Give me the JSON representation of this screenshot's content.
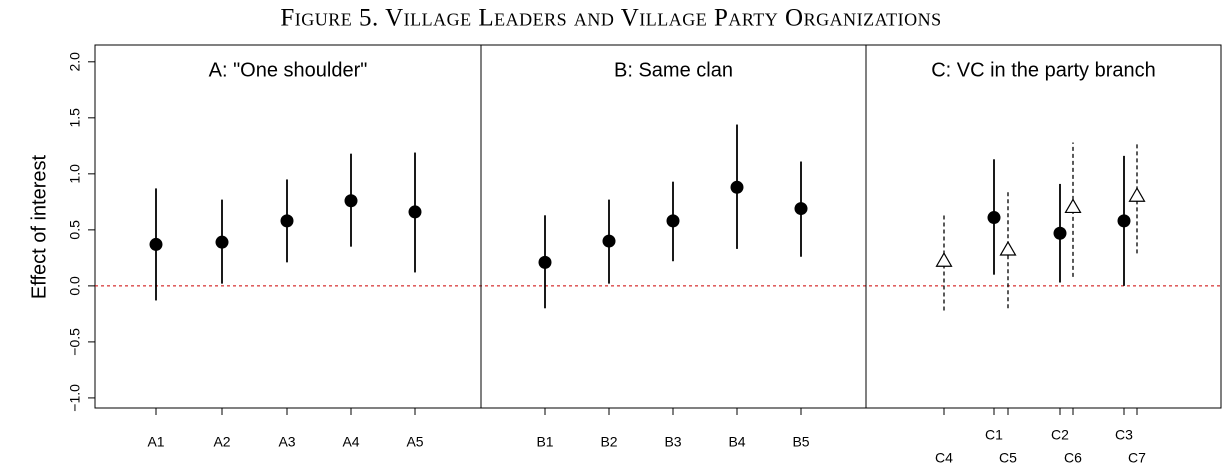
{
  "chart_data": {
    "type": "errorbar",
    "title": "Figure 5. Village Leaders and Village Party Organizations",
    "ylabel": "Effect of interest",
    "ylim": [
      -1.09,
      2.15
    ],
    "yticks": [
      {
        "value": -1,
        "label": "−1.0"
      },
      {
        "value": -0.5,
        "label": "−0.5"
      },
      {
        "value": 0,
        "label": "0.0"
      },
      {
        "value": 0.5,
        "label": "0.5"
      },
      {
        "value": 1,
        "label": "1.0"
      },
      {
        "value": 1.5,
        "label": "1.5"
      },
      {
        "value": 2,
        "label": "2.0"
      }
    ],
    "reference_line": 0,
    "reference_color": "#cc0000",
    "panels": [
      {
        "title": "A: \"One shoulder\"",
        "series": [
          {
            "marker": "circle",
            "linestyle": "solid",
            "categories": [
              "A1",
              "A2",
              "A3",
              "A4",
              "A5"
            ],
            "values": [
              0.37,
              0.39,
              0.58,
              0.76,
              0.66
            ],
            "lower": [
              -0.13,
              0.02,
              0.21,
              0.35,
              0.12
            ],
            "upper": [
              0.87,
              0.77,
              0.95,
              1.18,
              1.19
            ]
          }
        ]
      },
      {
        "title": "B: Same clan",
        "series": [
          {
            "marker": "circle",
            "linestyle": "solid",
            "categories": [
              "B1",
              "B2",
              "B3",
              "B4",
              "B5"
            ],
            "values": [
              0.21,
              0.4,
              0.58,
              0.88,
              0.69
            ],
            "lower": [
              -0.2,
              0.02,
              0.22,
              0.33,
              0.26
            ],
            "upper": [
              0.63,
              0.77,
              0.93,
              1.44,
              1.11
            ]
          }
        ]
      },
      {
        "title": "C: VC in the party branch",
        "series": [
          {
            "marker": "circle",
            "linestyle": "solid",
            "categories": [
              "C1",
              "C2",
              "C3"
            ],
            "values": [
              0.61,
              0.47,
              0.58
            ],
            "lower": [
              0.1,
              0.03,
              0.0
            ],
            "upper": [
              1.13,
              0.91,
              1.16
            ]
          },
          {
            "marker": "triangle",
            "linestyle": "dashed",
            "categories": [
              "C4",
              "C5",
              "C6",
              "C7"
            ],
            "values": [
              0.22,
              0.32,
              0.7,
              0.8
            ],
            "lower": [
              -0.22,
              -0.2,
              0.08,
              0.29
            ],
            "upper": [
              0.65,
              0.84,
              1.28,
              1.27
            ]
          }
        ]
      }
    ]
  }
}
